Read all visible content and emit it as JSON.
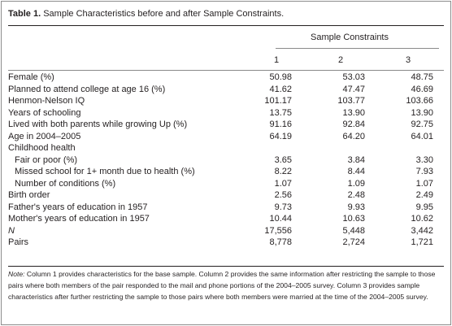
{
  "caption": {
    "label": "Table 1.",
    "text": "Sample Characteristics before and after Sample Constraints."
  },
  "header": {
    "group": "Sample Constraints",
    "columns": [
      "1",
      "2",
      "3"
    ]
  },
  "rows": [
    {
      "label": "Female (%)",
      "values": [
        "50.98",
        "53.03",
        "48.75"
      ]
    },
    {
      "label": "Planned to attend college at age 16 (%)",
      "values": [
        "41.62",
        "47.47",
        "46.69"
      ]
    },
    {
      "label": "Henmon-Nelson IQ",
      "values": [
        "101.17",
        "103.77",
        "103.66"
      ]
    },
    {
      "label": "Years of schooling",
      "values": [
        "13.75",
        "13.90",
        "13.90"
      ]
    },
    {
      "label": "Lived with both parents while growing Up (%)",
      "values": [
        "91.16",
        "92.84",
        "92.75"
      ]
    },
    {
      "label": "Age in 2004–2005",
      "values": [
        "64.19",
        "64.20",
        "64.01"
      ]
    },
    {
      "label": "Childhood health",
      "values": [
        "",
        "",
        ""
      ]
    },
    {
      "label": "Fair or poor (%)",
      "values": [
        "3.65",
        "3.84",
        "3.30"
      ],
      "indent": true
    },
    {
      "label": "Missed school for 1+ month due to health (%)",
      "values": [
        "8.22",
        "8.44",
        "7.93"
      ],
      "indent": true
    },
    {
      "label": "Number of conditions (%)",
      "values": [
        "1.07",
        "1.09",
        "1.07"
      ],
      "indent": true
    },
    {
      "label": "Birth order",
      "values": [
        "2.56",
        "2.48",
        "2.49"
      ]
    },
    {
      "label": "Father's years of education in 1957",
      "values": [
        "9.73",
        "9.93",
        "9.95"
      ]
    },
    {
      "label": "Mother's years of education in 1957",
      "values": [
        "10.44",
        "10.63",
        "10.62"
      ]
    },
    {
      "label": "N",
      "values": [
        "17,556",
        "5,448",
        "3,442"
      ],
      "italic": true
    },
    {
      "label": "Pairs",
      "values": [
        "8,778",
        "2,724",
        "1,721"
      ]
    }
  ],
  "note": {
    "label": "Note:",
    "text": " Column 1 provides characteristics for the base sample. Column 2 provides the same information after restricting the sample to those pairs where both members of the pair responded to the mail and phone portions of the 2004–2005 survey. Column 3 provides sample characteristics after further restricting the sample to those pairs where both members were married at the time of the 2004–2005 survey."
  }
}
